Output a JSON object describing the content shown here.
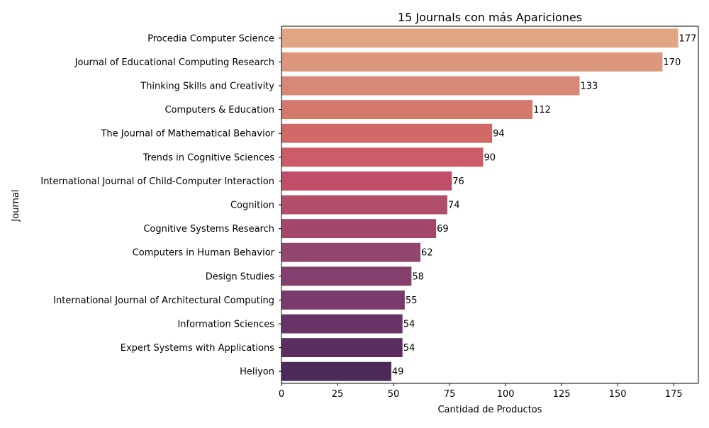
{
  "chart_data": {
    "type": "bar",
    "orientation": "horizontal",
    "title": "15 Journals con más Apariciones",
    "xlabel": "Cantidad de Productos",
    "ylabel": "Journal",
    "xlim": [
      0,
      186
    ],
    "xticks": [
      0,
      25,
      50,
      75,
      100,
      125,
      150,
      175
    ],
    "grid": false,
    "legend": "none",
    "categories": [
      "Procedia Computer Science",
      "Journal of Educational Computing Research",
      "Thinking Skills and Creativity",
      "Computers & Education",
      "The Journal of Mathematical Behavior",
      "Trends in Cognitive Sciences",
      "International Journal of Child-Computer Interaction",
      "Cognition",
      "Cognitive Systems Research",
      "Computers in Human Behavior",
      "Design Studies",
      "International Journal of Architectural Computing",
      "Information Sciences",
      "Expert Systems with Applications",
      "Heliyon"
    ],
    "values": [
      177,
      170,
      133,
      112,
      94,
      90,
      76,
      74,
      69,
      62,
      58,
      55,
      54,
      54,
      49
    ],
    "colors": [
      "#e2a584",
      "#db977c",
      "#d78876",
      "#d37a6d",
      "#cf6a68",
      "#cc5c67",
      "#c04e68",
      "#b14e6a",
      "#a2476b",
      "#93466d",
      "#853f6c",
      "#783b6b",
      "#683366",
      "#5a2f60",
      "#4c2a59"
    ]
  }
}
